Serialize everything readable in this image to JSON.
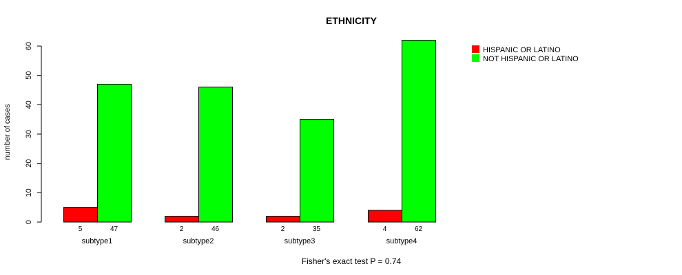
{
  "chart_data": {
    "type": "bar",
    "title": "ETHNICITY",
    "xlabel": "",
    "ylabel": "number of cases",
    "categories": [
      "subtype1",
      "subtype2",
      "subtype3",
      "subtype4"
    ],
    "series": [
      {
        "name": "HISPANIC OR LATINO",
        "color": "#ff0000",
        "values": [
          5,
          2,
          2,
          4
        ]
      },
      {
        "name": "NOT HISPANIC OR LATINO",
        "color": "#00ff00",
        "values": [
          47,
          46,
          35,
          62
        ]
      }
    ],
    "ylim": [
      0,
      60
    ],
    "yticks": [
      0,
      10,
      20,
      30,
      40,
      50,
      60
    ],
    "grid": false,
    "legend_position": "top-right",
    "footnote": "Fisher's exact test P = 0.74"
  }
}
